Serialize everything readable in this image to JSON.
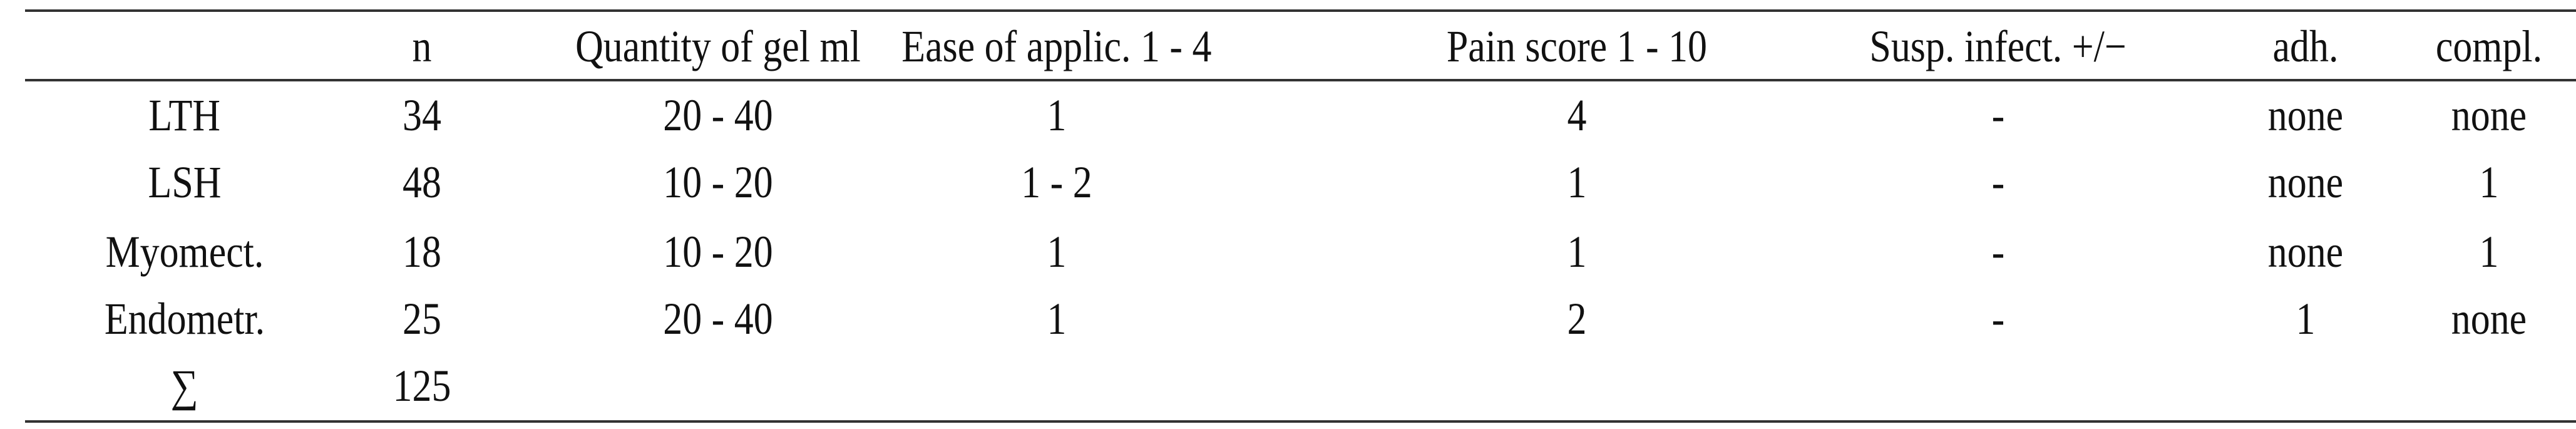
{
  "table": {
    "headers": [
      "",
      "n",
      "Quantity of gel ml",
      "Ease of applic. 1 - 4",
      "Pain score 1 - 10",
      "Susp. infect. +/−",
      "adh.",
      "compl."
    ],
    "rows": [
      [
        "LTH",
        "34",
        "20 - 40",
        "1",
        "4",
        "-",
        "none",
        "none"
      ],
      [
        "LSH",
        "48",
        "10 - 20",
        "1 - 2",
        "1",
        "-",
        "none",
        "1"
      ],
      [
        "Myomect.",
        "18",
        "10 - 20",
        "1",
        "1",
        "-",
        "none",
        "1"
      ],
      [
        "Endometr.",
        "25",
        "20 - 40",
        "1",
        "2",
        "-",
        "1",
        "none"
      ],
      [
        "∑",
        "125",
        "",
        "",
        "",
        "",
        "",
        ""
      ]
    ]
  }
}
